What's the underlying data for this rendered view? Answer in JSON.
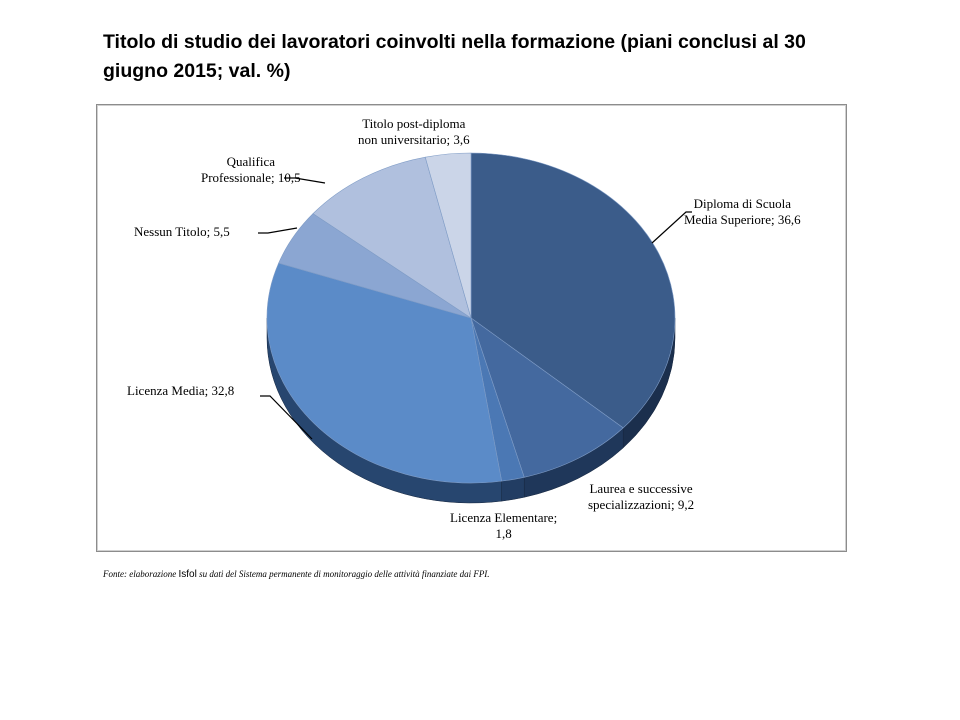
{
  "title": "Titolo di studio dei lavoratori coinvolti nella formazione (piani conclusi al 30 giugno 2015; val. %)",
  "source": {
    "prefix": "Fonte: elaborazione ",
    "org": "Isfol",
    "suffix": " su dati del Sistema permanente di monitoraggio delle attività finanziate dai FPI."
  },
  "labels": {
    "diploma": [
      "Diploma di Scuola",
      "Media Superiore; 36,6"
    ],
    "laurea": [
      "Laurea e successive",
      "specializzazioni; 9,2"
    ],
    "elementare": [
      "Licenza Elementare;",
      "1,8"
    ],
    "media": [
      "Licenza Media; 32,8"
    ],
    "nessun": [
      "Nessun Titolo; 5,5"
    ],
    "qualifica": [
      "Qualifica",
      "Professionale; 10,5"
    ],
    "postdiploma": [
      "Titolo post-diploma",
      "non universitario; 3,6"
    ]
  },
  "chart_data": {
    "type": "pie",
    "title": "Titolo di studio dei lavoratori coinvolti nella formazione (piani conclusi al 30 giugno 2015; val. %)",
    "style": "3d",
    "unit": "%",
    "categories": [
      "Diploma di Scuola Media Superiore",
      "Laurea e successive specializzazioni",
      "Licenza Elementare",
      "Licenza Media",
      "Nessun Titolo",
      "Qualifica Professionale",
      "Titolo post-diploma non universitario"
    ],
    "values": [
      36.6,
      9.2,
      1.8,
      32.8,
      5.5,
      10.5,
      3.6
    ],
    "colors": [
      "#3b5c8a",
      "#44699f",
      "#4b78b4",
      "#5b8bc8",
      "#8ba6d2",
      "#b0c0de",
      "#cbd5e8"
    ],
    "legend": "none (data labels: category; value)",
    "source": "Fonte: elaborazione Isfol su dati del Sistema permanente di monitoraggio delle attività finanziate dai FPI."
  }
}
